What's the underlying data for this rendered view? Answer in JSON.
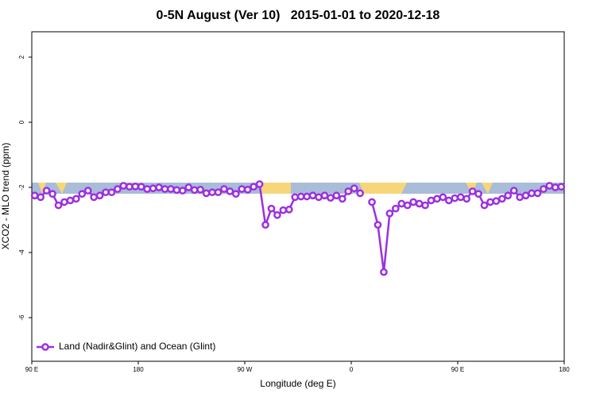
{
  "chart_data": {
    "type": "line",
    "title": "0-5N August (Ver 10)   2015-01-01 to 2020-12-18",
    "x_label": "Longitude (deg E)",
    "y_label": "XCO2 - MLO trend (ppm)",
    "x": [
      92.5,
      97.5,
      102.5,
      107.5,
      112.5,
      117.5,
      122.5,
      127.5,
      132.5,
      137.5,
      142.5,
      147.5,
      152.5,
      157.5,
      162.5,
      167.5,
      172.5,
      177.5,
      182.5,
      187.5,
      192.5,
      197.5,
      202.5,
      207.5,
      212.5,
      217.5,
      222.5,
      227.5,
      232.5,
      237.5,
      242.5,
      247.5,
      252.5,
      257.5,
      262.5,
      267.5,
      272.5,
      277.5,
      282.5,
      287.5,
      292.5,
      297.5,
      302.5,
      307.5,
      312.5,
      317.5,
      322.5,
      327.5,
      332.5,
      337.5,
      342.5,
      347.5,
      352.5,
      357.5,
      362.5,
      367.5,
      372.5,
      377.5,
      382.5,
      387.5,
      392.5,
      397.5,
      402.5,
      407.5,
      412.5,
      417.5,
      422.5,
      427.5,
      432.5,
      437.5,
      442.5,
      447.5,
      452.5,
      457.5,
      462.5,
      467.5,
      472.5,
      477.5,
      482.5,
      487.5,
      492.5,
      497.5,
      502.5,
      507.5,
      512.5,
      517.5,
      522.5,
      527.5,
      532.5,
      537.5
    ],
    "series": [
      {
        "name": "Land (Nadir&Glint) and Ocean (Glint)",
        "color": "#9b30e0",
        "values": [
          -2.25,
          -2.3,
          -2.1,
          -2.2,
          -2.55,
          -2.45,
          -2.4,
          -2.35,
          -2.2,
          -2.1,
          -2.3,
          -2.25,
          -2.15,
          -2.15,
          -2.05,
          -1.95,
          -1.98,
          -1.97,
          -1.98,
          -2.05,
          -2.03,
          -2.0,
          -2.05,
          -2.05,
          -2.08,
          -2.1,
          -2.0,
          -2.08,
          -2.07,
          -2.18,
          -2.15,
          -2.15,
          -2.05,
          -2.12,
          -2.2,
          -2.05,
          -2.07,
          -1.98,
          -1.9,
          -3.15,
          -2.65,
          -2.85,
          -2.7,
          -2.68,
          -2.3,
          -2.28,
          -2.28,
          -2.25,
          -2.3,
          -2.25,
          -2.32,
          -2.25,
          -2.35,
          -2.12,
          -2.03,
          -2.18,
          null,
          -2.45,
          -3.15,
          -4.6,
          -2.8,
          -2.65,
          -2.5,
          -2.55,
          -2.45,
          -2.5,
          -2.55,
          -2.4,
          -2.35,
          -2.3,
          -2.4,
          -2.33,
          -2.3,
          -2.35,
          -2.12,
          -2.2,
          -2.55,
          -2.45,
          -2.42,
          -2.35,
          -2.25,
          -2.1,
          -2.3,
          -2.25,
          -2.18,
          -2.18,
          -2.05,
          -1.95,
          -2.0,
          -1.98
        ]
      }
    ],
    "xlim": [
      90,
      540
    ],
    "xticks": [
      {
        "value": 90,
        "label": "90 E"
      },
      {
        "value": 180,
        "label": "180"
      },
      {
        "value": 270,
        "label": "90 W"
      },
      {
        "value": 360,
        "label": "0"
      },
      {
        "value": 450,
        "label": "90 E"
      },
      {
        "value": 540,
        "label": "180"
      }
    ],
    "ylim": [
      -7.34,
      2.78
    ],
    "yticks": [
      2,
      0,
      -2,
      -4,
      -6
    ],
    "legend": "bottom-left"
  }
}
